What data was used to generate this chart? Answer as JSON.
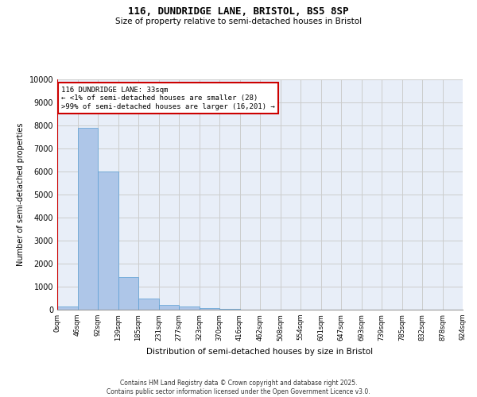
{
  "title1": "116, DUNDRIDGE LANE, BRISTOL, BS5 8SP",
  "title2": "Size of property relative to semi-detached houses in Bristol",
  "xlabel": "Distribution of semi-detached houses by size in Bristol",
  "ylabel": "Number of semi-detached properties",
  "footer_line1": "Contains HM Land Registry data © Crown copyright and database right 2025.",
  "footer_line2": "Contains public sector information licensed under the Open Government Licence v3.0.",
  "bar_values": [
    150,
    7900,
    6000,
    1400,
    480,
    220,
    130,
    60,
    20,
    5,
    2,
    1,
    0,
    0,
    0,
    0,
    0,
    0,
    0,
    0
  ],
  "bin_labels": [
    "0sqm",
    "46sqm",
    "92sqm",
    "139sqm",
    "185sqm",
    "231sqm",
    "277sqm",
    "323sqm",
    "370sqm",
    "416sqm",
    "462sqm",
    "508sqm",
    "554sqm",
    "601sqm",
    "647sqm",
    "693sqm",
    "739sqm",
    "785sqm",
    "832sqm",
    "878sqm",
    "924sqm"
  ],
  "bar_color": "#aec6e8",
  "bar_edge_color": "#5a9fd4",
  "grid_color": "#cccccc",
  "bg_color": "#e8eef8",
  "annotation_title": "116 DUNDRIDGE LANE: 33sqm",
  "annotation_line1": "← <1% of semi-detached houses are smaller (28)",
  "annotation_line2": ">99% of semi-detached houses are larger (16,201) →",
  "annotation_box_color": "#ffffff",
  "annotation_border_color": "#cc0000",
  "ylim": [
    0,
    10000
  ],
  "yticks": [
    0,
    1000,
    2000,
    3000,
    4000,
    5000,
    6000,
    7000,
    8000,
    9000,
    10000
  ]
}
